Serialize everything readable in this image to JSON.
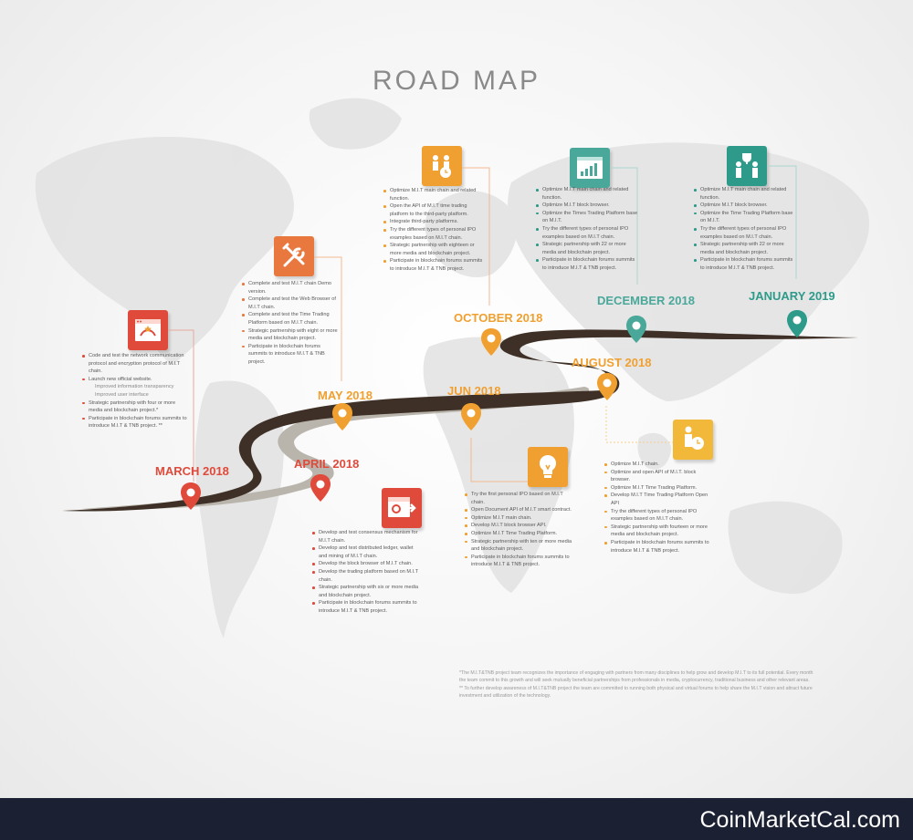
{
  "title": "ROAD MAP",
  "colors": {
    "red": "#e04a3b",
    "orange": "#f0a030",
    "teal": "#2d9a8a",
    "road": "#3e3026",
    "grey_road": "#b9b5ac",
    "salmon": "#e36f5b"
  },
  "milestones": {
    "march_2018": {
      "label": "MARCH 2018",
      "icon": "web-browser-icon",
      "items": [
        {
          "text": "Code and test the network communication protocol and encryption protocol of M.I.T chain."
        },
        {
          "text": "Launch new official website."
        },
        {
          "text": "Improved information transparency",
          "sub": true
        },
        {
          "text": "Improved user interface",
          "sub": true
        },
        {
          "text": "Strategic partnership with four or more media and blockchain project.*"
        },
        {
          "text": "Participate in blockchain forums summits to introduce M.I.T & TNB project. **"
        }
      ]
    },
    "april_2018": {
      "label": "APRIL 2018",
      "icon": "window-arrow-icon",
      "items": [
        {
          "text": "Develop and test consensus mechanism for M.I.T chain."
        },
        {
          "text": "Develop and test distributed ledger, wallet and mining of M.I.T chain."
        },
        {
          "text": "Develop the block browser of M.I.T chain."
        },
        {
          "text": "Develop the trading platform based on M.I.T chain."
        },
        {
          "text": "Strategic partnership with six or more media and blockchain project."
        },
        {
          "text": "Participate in blockchain forums summits to introduce M.I.T & TNB project."
        }
      ]
    },
    "may_2018": {
      "label": "MAY 2018",
      "icon": "tools-icon",
      "items": [
        {
          "text": "Complete and test M.I.T chain Demo version."
        },
        {
          "text": "Complete and test the Web Browser of M.I.T chain."
        },
        {
          "text": "Complete and test the Time Trading Platform based on M.I.T chain."
        },
        {
          "text": "Strategic partnership with eight or more media and blockchain project."
        },
        {
          "text": "Participate in blockchain forums summits to introduce M.I.T & TNB project."
        }
      ]
    },
    "jun_2018": {
      "label": "JUN 2018",
      "icon": "lightbulb-icon",
      "items": [
        {
          "text": "Try the first personal IPO based on M.I.T chain."
        },
        {
          "text": "Open Document API of M.I.T smart contract."
        },
        {
          "text": "Optimize M.I.T main chain."
        },
        {
          "text": "Develop M.I.T block browser API."
        },
        {
          "text": "Optimize M.I.T Time Trading Platform."
        },
        {
          "text": "Strategic partnership with ten or more media and blockchain project."
        },
        {
          "text": "Participate in blockchain forums summits to introduce M.I.T & TNB project."
        }
      ]
    },
    "august_2018": {
      "label": "AUGUST 2018",
      "icon": "businessman-clock-icon",
      "items": [
        {
          "text": "Optimize M.I.T chain."
        },
        {
          "text": "Optimize and open API of M.I.T. block browser."
        },
        {
          "text": "Optimize M.I.T Time Trading Platform."
        },
        {
          "text": "Develop M.I.T Time Trading Platform Open API"
        },
        {
          "text": "Try the different types of personal IPO examples based on M.I.T chain."
        },
        {
          "text": "Strategic partnership with fourteen or more media and blockchain project."
        },
        {
          "text": "Participate in blockchain forums summits to introduce M.I.T & TNB project."
        }
      ]
    },
    "october_2018": {
      "label": "OCTOBER 2018",
      "icon": "team-clock-icon",
      "items": [
        {
          "text": "Optimize M.I.T main chain and related function."
        },
        {
          "text": "Open the API of M.I.T time trading platform to the third-party platform."
        },
        {
          "text": "Integrate third-party platforms."
        },
        {
          "text": "Try the different types of personal IPO examples based on M.I.T chain."
        },
        {
          "text": "Strategic partnership with eighteen or more media and blockchain project."
        },
        {
          "text": "Participate in blockchain forums summits to introduce M.I.T & TNB project."
        }
      ]
    },
    "december_2018": {
      "label": "DECEMBER 2018",
      "icon": "growth-chart-icon",
      "items": [
        {
          "text": "Optimize M.I.T main chain and related function."
        },
        {
          "text": "Optimize M.I.T block browser."
        },
        {
          "text": "Optimize the Times Trading Platform base on M.I.T."
        },
        {
          "text": "Try the different types of personal IPO examples based on M.I.T chain."
        },
        {
          "text": "Strategic partnership with 22 or more media and blockchain project."
        },
        {
          "text": "Participate in blockchain forums summits to introduce M.I.T & TNB project."
        }
      ]
    },
    "january_2019": {
      "label": "JANUARY 2019",
      "icon": "trophy-team-icon",
      "items": [
        {
          "text": "Optimize M.I.T main chain and related function."
        },
        {
          "text": "Optimize M.I.T block browser."
        },
        {
          "text": "Optimize the Time Trading Platform base on M.I.T."
        },
        {
          "text": "Try the different types of personal IPO examples based on M.I.T chain."
        },
        {
          "text": "Strategic partnership with 22 or more media and blockchain project."
        },
        {
          "text": "Participate in blockchain forums summits to introduce M.I.T & TNB project."
        }
      ]
    }
  },
  "footnotes": [
    "*The M.I.T&TNB project team recognizes the importance of engaging with partners from many disciplines to help grow and develop M.I.T to its full potential. Every month the team commit to this growth and will seek mutually beneficial partnerships from professionals in media, cryptocurrency, traditional business and other relevant areas.",
    "** To further develop awareness of M.I.T&TNB project the team are committed to running both physical and virtual forums to help share the M.I.T vision and attract future investment and utilization of the technology."
  ],
  "footer": {
    "brand": "CoinMarketCal.com"
  }
}
